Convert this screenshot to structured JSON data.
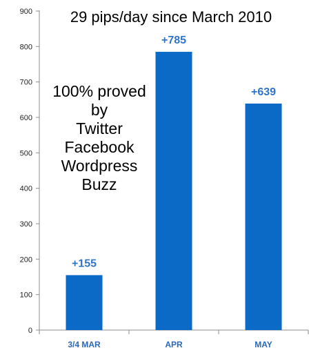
{
  "chart_data": {
    "type": "bar",
    "title": "29 pips/day since March 2010",
    "categories": [
      "3/4 MAR",
      "APR",
      "MAY"
    ],
    "values": [
      155,
      785,
      639
    ],
    "data_labels": [
      "+155",
      "+785",
      "+639"
    ],
    "ylim": [
      0,
      900
    ],
    "yticks": [
      0,
      100,
      200,
      300,
      400,
      500,
      600,
      700,
      800,
      900
    ],
    "grid": false,
    "colors": {
      "bar": "#0a6ac6",
      "bar_label": "#2f74c8",
      "category_label": "#2b67b8",
      "axis": "#8c8c8c"
    },
    "annotations": [
      "100% proved",
      "by",
      "Twitter",
      "Facebook",
      "Wordpress",
      "Buzz"
    ]
  }
}
